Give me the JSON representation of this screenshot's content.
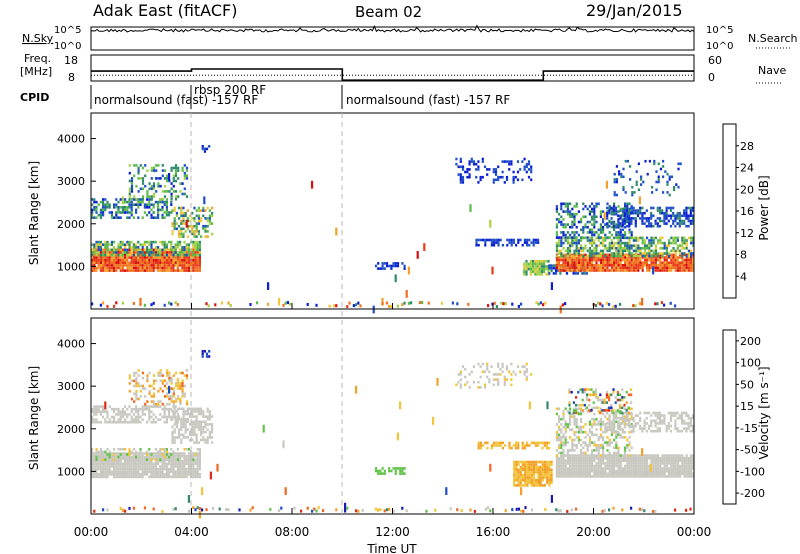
{
  "header": {
    "station": "Adak East (fitACF)",
    "beam": "Beam 02",
    "date": "29/Jan/2015"
  },
  "left_labels": {
    "nsky": "N.Sky",
    "freq_line1": "Freq.",
    "freq_line2": "[MHz]",
    "cpid": "CPID"
  },
  "right_labels": {
    "nsearch": "N.Search",
    "nave": "Nave"
  },
  "cpid_segments": [
    {
      "label": "normalsound (fast) -157 RF",
      "start_h": 0
    },
    {
      "label": "rbsp 200 RF",
      "start_h": 4
    },
    {
      "label": "normalsound (fast) -157 RF",
      "start_h": 10
    }
  ],
  "colors": {
    "power": [
      "#0a1ed2",
      "#1f4fc8",
      "#2f8a6c",
      "#5cba4a",
      "#a6d24a",
      "#f0c83a",
      "#f2a028",
      "#f07020",
      "#e83a1a",
      "#d90f0f"
    ],
    "velocity": [
      "#1a1ab4",
      "#1d4fc2",
      "#2f8a6c",
      "#62c24a",
      "#c8c8c0",
      "#c8c8c0",
      "#f2c43a",
      "#f2a028",
      "#ef6820",
      "#e02a16"
    ],
    "ground_scatter": "#c0bfb8"
  },
  "chart_data": [
    {
      "type": "line",
      "name": "sky-noise",
      "left_axis": {
        "label": "N.Sky",
        "ticks": [
          "10^5",
          "10^0"
        ]
      },
      "right_axis": {
        "label": "N.Search",
        "ticks": [
          "10^5",
          "10^0"
        ]
      },
      "x_range_hours": [
        0,
        24
      ],
      "noise_level": 0.85
    },
    {
      "type": "line",
      "name": "frequency",
      "left_axis": {
        "label": "Freq. [MHz]",
        "ticks": [
          "18",
          "8"
        ],
        "range": [
          8,
          18
        ]
      },
      "right_axis": {
        "label": "Nave",
        "ticks": [
          "60",
          "0"
        ],
        "range": [
          0,
          60
        ]
      },
      "freq_steps": [
        {
          "x_start": 0,
          "x_end": 4,
          "value": 11.8
        },
        {
          "x_start": 4,
          "x_end": 10,
          "value": 12.6
        },
        {
          "x_start": 10,
          "x_end": 18,
          "value": 8.3
        },
        {
          "x_start": 18,
          "x_end": 24,
          "value": 11.8
        }
      ],
      "nave_level": 0.22
    },
    {
      "type": "heatmap",
      "name": "power",
      "ylabel": "Slant Range [km]",
      "y_ticks": [
        1000,
        2000,
        3000,
        4000
      ],
      "y_range": [
        0,
        4600
      ],
      "colorbar": {
        "label": "Power [dB]",
        "ticks": [
          "28",
          "24",
          "20",
          "16",
          "12",
          "8",
          "4"
        ]
      },
      "blobs": [
        {
          "h0": 0.0,
          "h1": 4.3,
          "r0": 920,
          "r1": 1420,
          "density": 0.95,
          "c0": 6,
          "c1": 9
        },
        {
          "h0": 0.0,
          "h1": 4.3,
          "r0": 1250,
          "r1": 1600,
          "density": 0.7,
          "c0": 1,
          "c1": 5
        },
        {
          "h0": 0.0,
          "h1": 3.2,
          "r0": 2150,
          "r1": 2600,
          "density": 0.55,
          "c0": 0,
          "c1": 3
        },
        {
          "h0": 1.5,
          "h1": 3.8,
          "r0": 2550,
          "r1": 3400,
          "density": 0.35,
          "c0": 0,
          "c1": 4
        },
        {
          "h0": 3.2,
          "h1": 4.8,
          "r0": 1700,
          "r1": 2400,
          "density": 0.5,
          "c0": 1,
          "c1": 6
        },
        {
          "h0": 4.4,
          "h1": 4.7,
          "r0": 3700,
          "r1": 3850,
          "density": 0.6,
          "c0": 0,
          "c1": 1
        },
        {
          "h0": 11.3,
          "h1": 12.5,
          "r0": 950,
          "r1": 1100,
          "density": 0.55,
          "c0": 0,
          "c1": 1
        },
        {
          "h0": 15.3,
          "h1": 17.8,
          "r0": 1520,
          "r1": 1650,
          "density": 0.6,
          "c0": 0,
          "c1": 1
        },
        {
          "h0": 17.2,
          "h1": 18.2,
          "r0": 800,
          "r1": 1150,
          "density": 0.9,
          "c0": 2,
          "c1": 5
        },
        {
          "h0": 18.2,
          "h1": 19.8,
          "r0": 850,
          "r1": 1050,
          "density": 0.45,
          "c0": 0,
          "c1": 2
        },
        {
          "h0": 14.5,
          "h1": 17.5,
          "r0": 2950,
          "r1": 3550,
          "density": 0.22,
          "c0": 0,
          "c1": 1
        },
        {
          "h0": 18.5,
          "h1": 24.0,
          "r0": 900,
          "r1": 1300,
          "density": 0.95,
          "c0": 6,
          "c1": 9
        },
        {
          "h0": 18.5,
          "h1": 24.0,
          "r0": 1250,
          "r1": 1700,
          "density": 0.65,
          "c0": 1,
          "c1": 5
        },
        {
          "h0": 18.5,
          "h1": 21.5,
          "r0": 1700,
          "r1": 2500,
          "density": 0.4,
          "c0": 0,
          "c1": 3
        },
        {
          "h0": 20.5,
          "h1": 24.0,
          "r0": 1950,
          "r1": 2400,
          "density": 0.55,
          "c0": 0,
          "c1": 2
        },
        {
          "h0": 20.8,
          "h1": 23.5,
          "r0": 2700,
          "r1": 3500,
          "density": 0.2,
          "c0": 0,
          "c1": 2
        }
      ],
      "sparse_density": 0.004
    },
    {
      "type": "heatmap",
      "name": "velocity",
      "ylabel": "Slant Range [km]",
      "y_ticks": [
        1000,
        2000,
        3000,
        4000
      ],
      "y_range": [
        0,
        4600
      ],
      "colorbar": {
        "label": "Velocity [m s⁻¹]",
        "ticks": [
          "200",
          "100",
          "50",
          "15",
          "-15",
          "-50",
          "-100",
          "-200"
        ]
      },
      "blobs": [
        {
          "h0": 0.0,
          "h1": 4.3,
          "r0": 900,
          "r1": 1450,
          "density": 0.95,
          "c0": 4,
          "c1": 5
        },
        {
          "h0": 0.0,
          "h1": 4.3,
          "r0": 1250,
          "r1": 1550,
          "density": 0.4,
          "c0": 3,
          "c1": 6
        },
        {
          "h0": 0.0,
          "h1": 3.5,
          "r0": 2150,
          "r1": 2550,
          "density": 0.6,
          "c0": 4,
          "c1": 5
        },
        {
          "h0": 3.2,
          "h1": 4.8,
          "r0": 1700,
          "r1": 2500,
          "density": 0.6,
          "c0": 4,
          "c1": 5
        },
        {
          "h0": 1.5,
          "h1": 3.8,
          "r0": 2550,
          "r1": 3400,
          "density": 0.35,
          "c0": 4,
          "c1": 8
        },
        {
          "h0": 4.4,
          "h1": 4.7,
          "r0": 3700,
          "r1": 3850,
          "density": 0.6,
          "c0": 0,
          "c1": 1
        },
        {
          "h0": 11.3,
          "h1": 12.5,
          "r0": 950,
          "r1": 1100,
          "density": 0.55,
          "c0": 3,
          "c1": 3
        },
        {
          "h0": 15.3,
          "h1": 18.2,
          "r0": 1550,
          "r1": 1700,
          "density": 0.6,
          "c0": 6,
          "c1": 7
        },
        {
          "h0": 16.8,
          "h1": 18.3,
          "r0": 700,
          "r1": 1250,
          "density": 0.9,
          "c0": 6,
          "c1": 7
        },
        {
          "h0": 18.5,
          "h1": 24.0,
          "r0": 880,
          "r1": 1400,
          "density": 0.95,
          "c0": 4,
          "c1": 5
        },
        {
          "h0": 18.5,
          "h1": 21.5,
          "r0": 1400,
          "r1": 2500,
          "density": 0.5,
          "c0": 3,
          "c1": 6
        },
        {
          "h0": 20.5,
          "h1": 24.0,
          "r0": 1950,
          "r1": 2400,
          "density": 0.5,
          "c0": 4,
          "c1": 5
        },
        {
          "h0": 19.0,
          "h1": 21.5,
          "r0": 2400,
          "r1": 2950,
          "density": 0.35,
          "c0": 0,
          "c1": 9
        },
        {
          "h0": 14.5,
          "h1": 17.5,
          "r0": 2950,
          "r1": 3550,
          "density": 0.2,
          "c0": 4,
          "c1": 6
        }
      ],
      "sparse_density": 0.004
    }
  ],
  "x_axis": {
    "label": "Time UT",
    "ticks": [
      "00:00",
      "04:00",
      "08:00",
      "12:00",
      "16:00",
      "20:00",
      "00:00"
    ]
  }
}
